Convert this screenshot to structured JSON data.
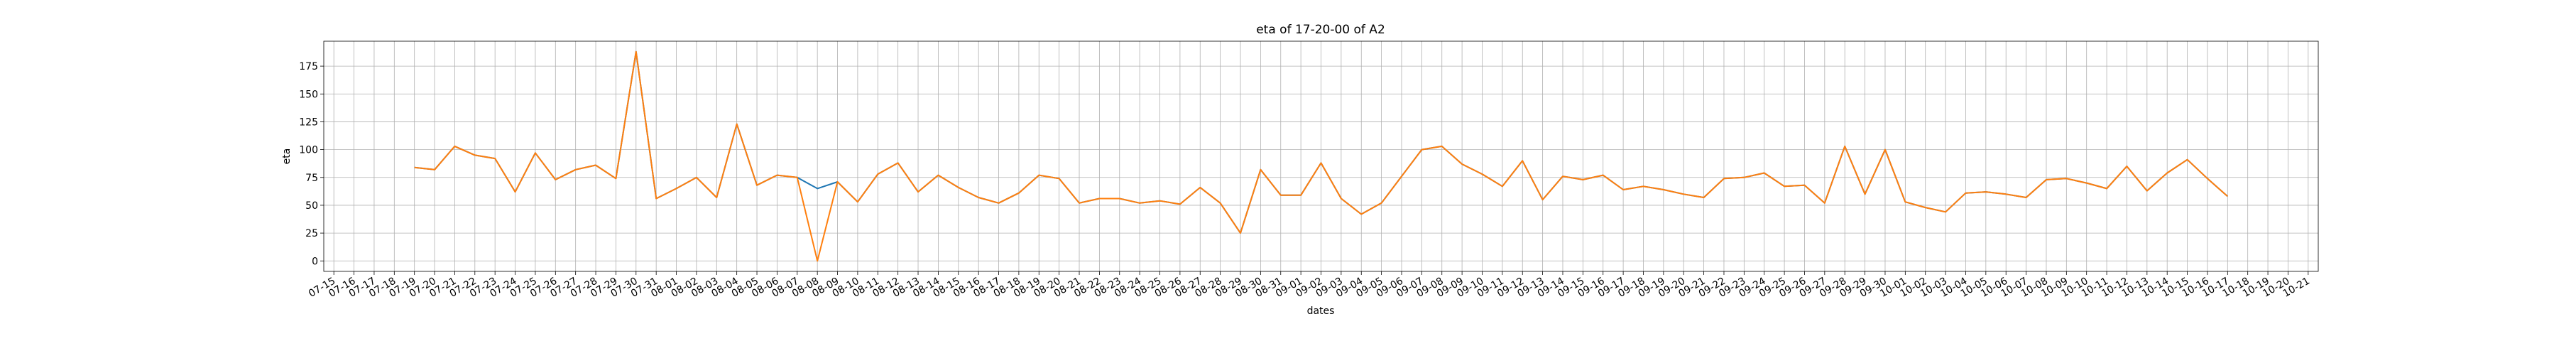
{
  "chart_data": {
    "type": "line",
    "title": "eta of 17-20-00 of A2",
    "xlabel": "dates",
    "ylabel": "eta",
    "categories": [
      "07-15",
      "07-16",
      "07-17",
      "07-18",
      "07-19",
      "07-20",
      "07-21",
      "07-22",
      "07-23",
      "07-24",
      "07-25",
      "07-26",
      "07-27",
      "07-28",
      "07-29",
      "07-30",
      "07-31",
      "08-01",
      "08-02",
      "08-03",
      "08-04",
      "08-05",
      "08-06",
      "08-07",
      "08-08",
      "08-09",
      "08-10",
      "08-11",
      "08-12",
      "08-13",
      "08-14",
      "08-15",
      "08-16",
      "08-17",
      "08-18",
      "08-19",
      "08-20",
      "08-21",
      "08-22",
      "08-23",
      "08-24",
      "08-25",
      "08-26",
      "08-27",
      "08-28",
      "08-29",
      "08-30",
      "08-31",
      "09-01",
      "09-02",
      "09-03",
      "09-04",
      "09-05",
      "09-06",
      "09-07",
      "09-08",
      "09-09",
      "09-10",
      "09-11",
      "09-12",
      "09-13",
      "09-14",
      "09-15",
      "09-16",
      "09-17",
      "09-18",
      "09-19",
      "09-20",
      "09-21",
      "09-22",
      "09-23",
      "09-24",
      "09-25",
      "09-26",
      "09-27",
      "09-28",
      "09-29",
      "09-30",
      "10-01",
      "10-02",
      "10-03",
      "10-04",
      "10-05",
      "10-06",
      "10-07",
      "10-08",
      "10-09",
      "10-10",
      "10-11",
      "10-12",
      "10-13",
      "10-14",
      "10-15",
      "10-16",
      "10-17",
      "10-18",
      "10-19",
      "10-20",
      "10-21"
    ],
    "series": [
      {
        "color": "#1f77b4",
        "values": [
          null,
          null,
          null,
          null,
          84,
          82,
          103,
          95,
          92,
          62,
          97,
          73,
          82,
          86,
          74,
          188,
          56,
          65,
          75,
          57,
          123,
          68,
          77,
          75,
          65,
          71,
          53,
          78,
          88,
          62,
          77,
          66,
          57,
          52,
          61,
          77,
          74,
          52,
          56,
          56,
          52,
          54,
          51,
          66,
          52,
          25,
          82,
          59,
          59,
          88,
          56,
          42,
          52,
          76,
          100,
          103,
          87,
          78,
          67,
          90,
          55,
          76,
          73,
          77,
          64,
          67,
          64,
          60,
          57,
          74,
          75,
          79,
          67,
          68,
          52,
          103,
          60,
          100,
          53,
          48,
          44,
          61,
          62,
          60,
          57,
          73,
          74,
          70,
          65,
          85,
          63,
          79,
          91,
          74,
          58,
          null,
          null,
          null,
          null
        ]
      },
      {
        "color": "#ff7f0e",
        "values": [
          null,
          null,
          null,
          null,
          84,
          82,
          103,
          95,
          92,
          62,
          97,
          73,
          82,
          86,
          74,
          188,
          56,
          65,
          75,
          57,
          123,
          68,
          77,
          75,
          0,
          71,
          53,
          78,
          88,
          62,
          77,
          66,
          57,
          52,
          61,
          77,
          74,
          52,
          56,
          56,
          52,
          54,
          51,
          66,
          52,
          25,
          82,
          59,
          59,
          88,
          56,
          42,
          52,
          76,
          100,
          103,
          87,
          78,
          67,
          90,
          55,
          76,
          73,
          77,
          64,
          67,
          64,
          60,
          57,
          74,
          75,
          79,
          67,
          68,
          52,
          103,
          60,
          100,
          53,
          48,
          44,
          61,
          62,
          60,
          57,
          73,
          74,
          70,
          65,
          85,
          63,
          79,
          91,
          74,
          58,
          null,
          null,
          null,
          null
        ]
      }
    ],
    "ylim": [
      -9.4,
      197.4
    ],
    "yticks": [
      0,
      25,
      50,
      75,
      100,
      125,
      150,
      175
    ],
    "grid": true
  }
}
